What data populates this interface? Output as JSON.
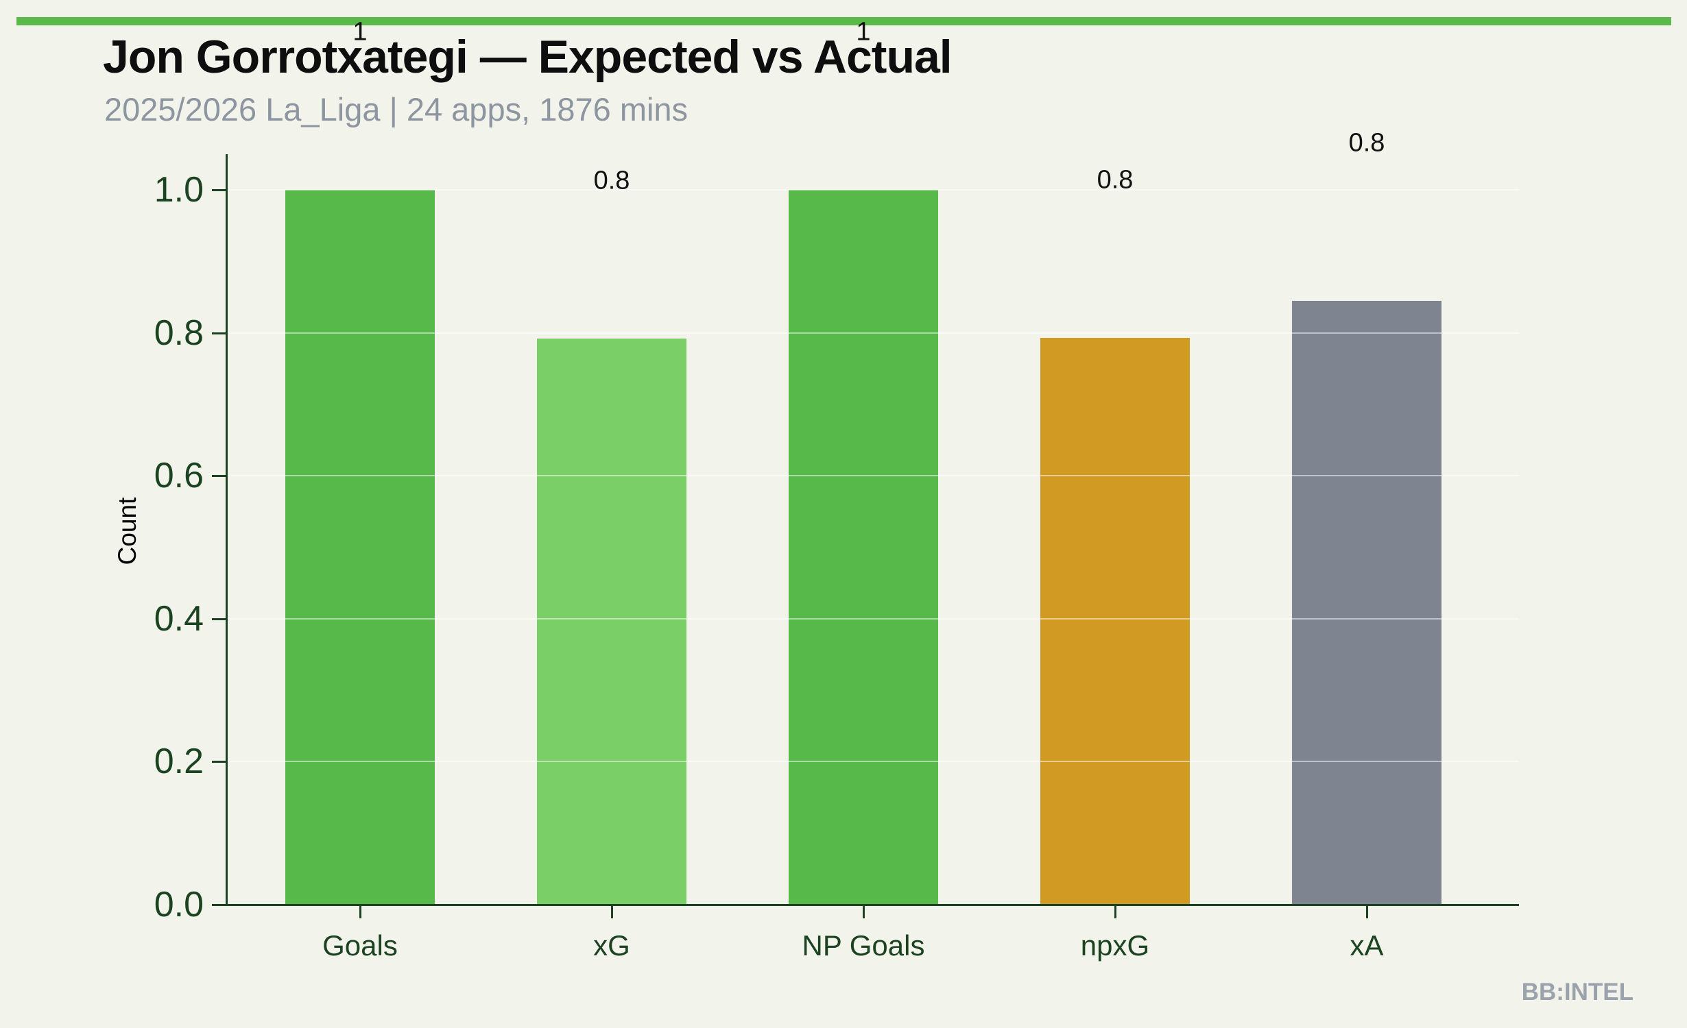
{
  "page": {
    "background_color": "#f2f3ea",
    "stripe_color": "#5bb94c",
    "watermark": "BB:INTEL"
  },
  "header": {
    "title": "Jon Gorrotxategi — Expected vs Actual",
    "subtitle": "2025/2026 La_Liga | 24 apps, 1876 mins"
  },
  "chart_data": {
    "type": "bar",
    "title": "Jon Gorrotxategi — Expected vs Actual",
    "subtitle": "2025/2026 La_Liga | 24 apps, 1876 mins",
    "xlabel": "",
    "ylabel": "Count",
    "ylim": [
      0.0,
      1.05
    ],
    "grid": true,
    "legend": "none",
    "categories": [
      "Goals",
      "xG",
      "NP Goals",
      "npxG",
      "xA"
    ],
    "values": [
      1.0,
      0.792,
      1.0,
      0.793,
      0.845
    ],
    "bar_labels": [
      "1",
      "0.8",
      "1",
      "0.8",
      "0.8"
    ],
    "bar_colors": [
      "#57b94a",
      "#7bcf67",
      "#57b94a",
      "#d19a22",
      "#7e8591"
    ],
    "bar_color_roles": [
      "actual-green",
      "expected-light-green",
      "actual-green",
      "expected-gold",
      "expected-gray"
    ],
    "y_ticks": [
      {
        "label": "1.0",
        "value": 1.0
      },
      {
        "label": "0.8",
        "value": 0.8
      },
      {
        "label": "0.6",
        "value": 0.6
      },
      {
        "label": "0.4",
        "value": 0.4
      },
      {
        "label": "0.2",
        "value": 0.2
      },
      {
        "label": "0.0",
        "value": 0.0
      }
    ],
    "axis_color": "#1c4321",
    "label_color": "#111111"
  }
}
